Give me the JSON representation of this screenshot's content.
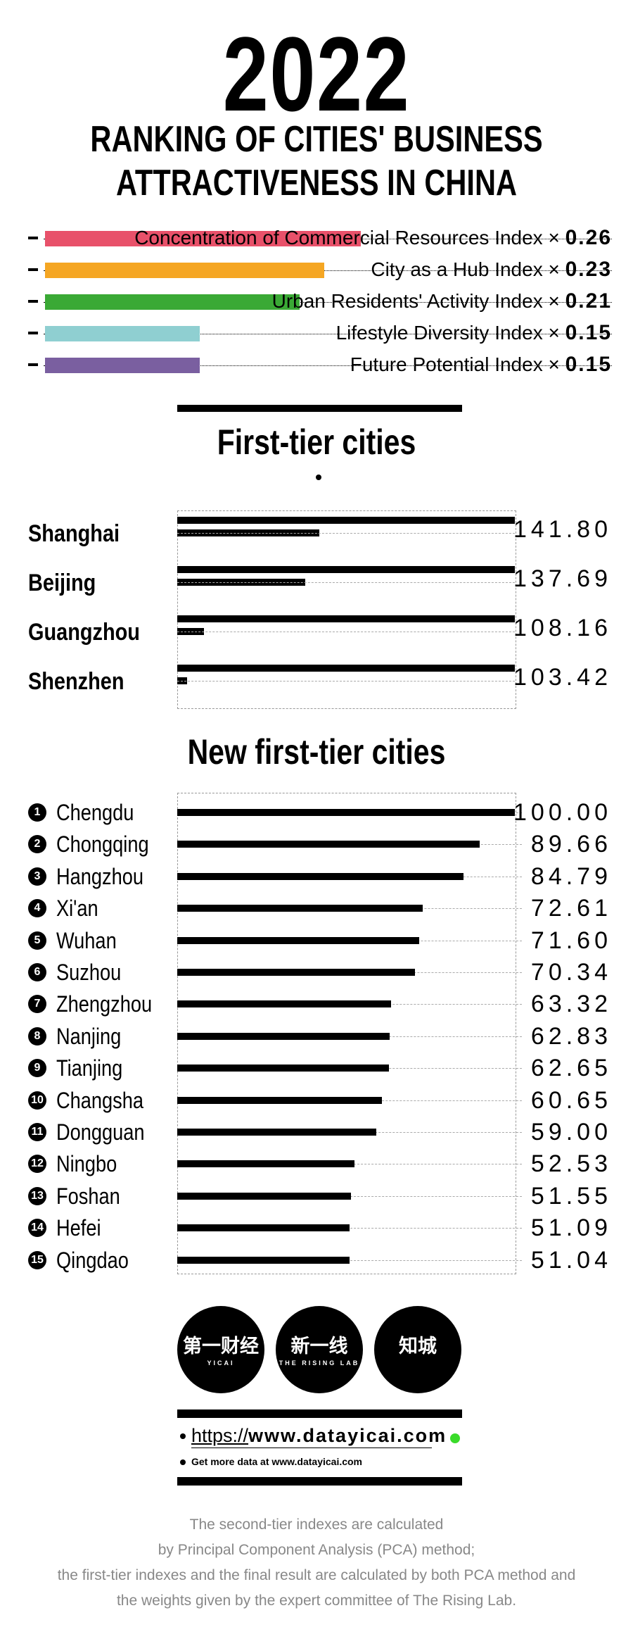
{
  "header": {
    "year": "2022",
    "title_line1": "RANKING OF CITIES' BUSINESS",
    "title_line2": "ATTRACTIVENESS IN CHINA"
  },
  "legend": [
    {
      "label": "Concentration of Commercial Resources Index ×",
      "weight": "0.26",
      "color": "#e8516a",
      "bar_fraction": 0.26
    },
    {
      "label": "City as a Hub Index ×",
      "weight": "0.23",
      "color": "#f5a623",
      "bar_fraction": 0.23
    },
    {
      "label": "Urban Residents' Activity Index ×",
      "weight": "0.21",
      "color": "#3aa935",
      "bar_fraction": 0.21
    },
    {
      "label": "Lifestyle Diversity Index ×",
      "weight": "0.15",
      "color": "#8fcfd1",
      "bar_fraction": 0.15
    },
    {
      "label": "Future Potential Index ×",
      "weight": "0.15",
      "color": "#7a5fa0",
      "bar_fraction": 0.15
    }
  ],
  "chart_data": [
    {
      "type": "bar",
      "title": "First-tier cities",
      "categories": [
        "Shanghai",
        "Beijing",
        "Guangzhou",
        "Shenzhen"
      ],
      "values": [
        141.8,
        137.69,
        108.16,
        103.42
      ],
      "labels": [
        "141.80",
        "137.69",
        "108.16",
        "103.42"
      ],
      "xlim": [
        0,
        100
      ]
    },
    {
      "type": "bar",
      "title": "New first-tier cities",
      "categories": [
        "Chengdu",
        "Chongqing",
        "Hangzhou",
        "Xi'an",
        "Wuhan",
        "Suzhou",
        "Zhengzhou",
        "Nanjing",
        "Tianjing",
        "Changsha",
        "Dongguan",
        "Ningbo",
        "Foshan",
        "Hefei",
        "Qingdao"
      ],
      "values": [
        100.0,
        89.66,
        84.79,
        72.61,
        71.6,
        70.34,
        63.32,
        62.83,
        62.65,
        60.65,
        59.0,
        52.53,
        51.55,
        51.09,
        51.04
      ],
      "labels": [
        "100.00",
        "89.66",
        "84.79",
        "72.61",
        "71.60",
        "70.34",
        "63.32",
        "62.83",
        "62.65",
        "60.65",
        "59.00",
        "52.53",
        "51.55",
        "51.09",
        "51.04"
      ],
      "ranks": [
        "1",
        "2",
        "3",
        "4",
        "5",
        "6",
        "7",
        "8",
        "9",
        "10",
        "11",
        "12",
        "13",
        "14",
        "15"
      ],
      "xlim": [
        0,
        100
      ]
    }
  ],
  "logos": [
    {
      "main": "第一财经",
      "sub": "YICAI"
    },
    {
      "main": "新一线",
      "sub": "THE RISING LAB"
    },
    {
      "main": "知城",
      "sub": ""
    }
  ],
  "links": {
    "url_prefix": "https://",
    "url_domain": "www.datayicai.com",
    "more": "Get more data at www.datayicai.com"
  },
  "footnote": [
    "The second-tier indexes are calculated",
    "by Principal Component Analysis (PCA) method;",
    "the first-tier indexes and the final result are calculated by both PCA method and",
    "the weights given by the expert committee of The Rising Lab."
  ]
}
